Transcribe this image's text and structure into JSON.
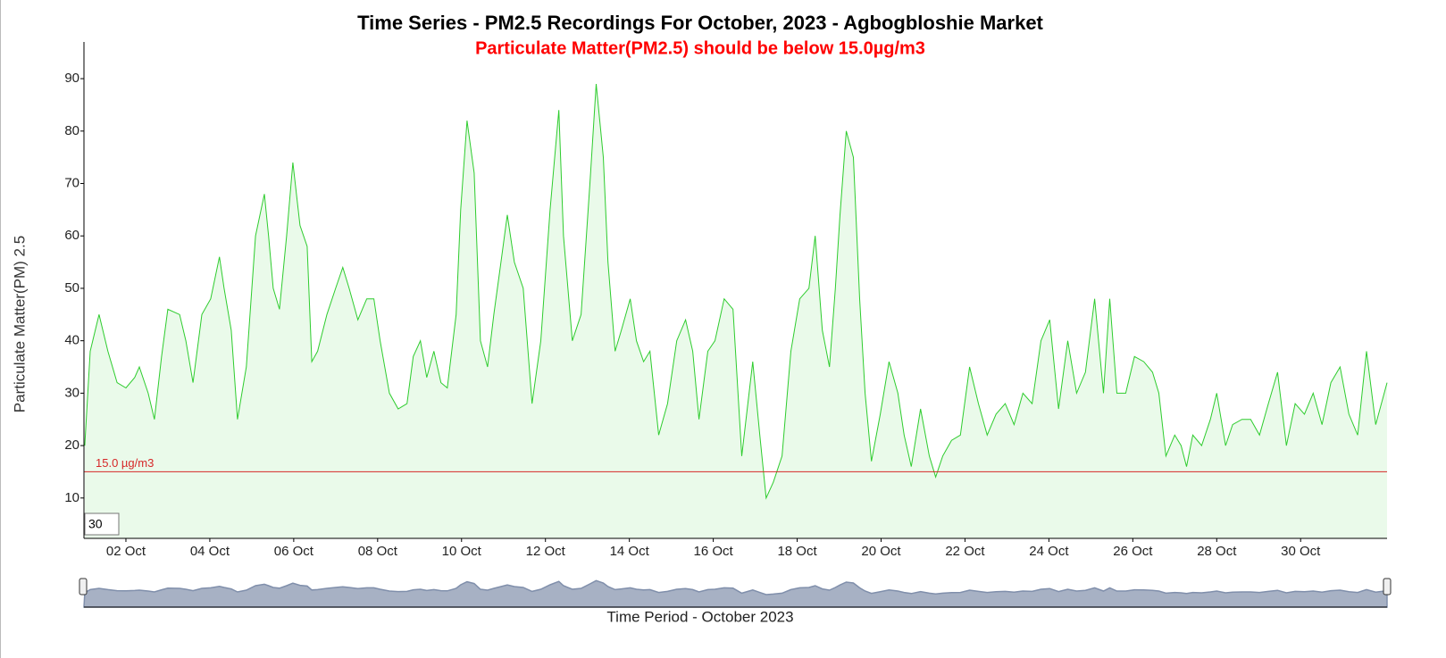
{
  "chart_data": {
    "type": "line",
    "title": "Time Series - PM2.5 Recordings For October, 2023 - Agbogbloshie Market",
    "subtitle": "Particulate Matter(PM2.5) should be below 15.0µg/m3",
    "ylabel": "Particulate Matter(PM) 2.5",
    "xlabel": "Time Period - October 2023",
    "roll_period": "30",
    "threshold": {
      "value": 15,
      "label": "15.0 µg/m3",
      "color": "#d62728"
    },
    "xlim": [
      1,
      32.06
    ],
    "ylim": [
      2.3,
      97
    ],
    "xticks": [
      {
        "value": 2,
        "label": "02 Oct"
      },
      {
        "value": 4,
        "label": "04 Oct"
      },
      {
        "value": 6,
        "label": "06 Oct"
      },
      {
        "value": 8,
        "label": "08 Oct"
      },
      {
        "value": 10,
        "label": "10 Oct"
      },
      {
        "value": 12,
        "label": "12 Oct"
      },
      {
        "value": 14,
        "label": "14 Oct"
      },
      {
        "value": 16,
        "label": "16 Oct"
      },
      {
        "value": 18,
        "label": "18 Oct"
      },
      {
        "value": 20,
        "label": "20 Oct"
      },
      {
        "value": 22,
        "label": "22 Oct"
      },
      {
        "value": 24,
        "label": "24 Oct"
      },
      {
        "value": 26,
        "label": "26 Oct"
      },
      {
        "value": 28,
        "label": "28 Oct"
      },
      {
        "value": 30,
        "label": "30 Oct"
      }
    ],
    "yticks": [
      10,
      20,
      30,
      40,
      50,
      60,
      70,
      80,
      90
    ],
    "series": [
      {
        "name": "PM2.5",
        "color": "#2ecc2e",
        "x": [
          1.02,
          1.15,
          1.36,
          1.57,
          1.79,
          2.0,
          2.21,
          2.32,
          2.53,
          2.68,
          2.85,
          3.0,
          3.28,
          3.43,
          3.6,
          3.81,
          4.02,
          4.23,
          4.34,
          4.51,
          4.66,
          4.87,
          5.09,
          5.3,
          5.4,
          5.51,
          5.66,
          5.83,
          5.98,
          6.15,
          6.32,
          6.43,
          6.57,
          6.79,
          7.0,
          7.17,
          7.32,
          7.53,
          7.74,
          7.91,
          8.06,
          8.28,
          8.49,
          8.7,
          8.85,
          9.02,
          9.17,
          9.34,
          9.51,
          9.66,
          9.87,
          9.98,
          10.13,
          10.3,
          10.45,
          10.62,
          10.77,
          10.94,
          11.09,
          11.26,
          11.47,
          11.68,
          11.89,
          12.11,
          12.32,
          12.43,
          12.64,
          12.85,
          13.06,
          13.21,
          13.38,
          13.49,
          13.66,
          13.81,
          14.02,
          14.17,
          14.34,
          14.49,
          14.7,
          14.91,
          15.13,
          15.34,
          15.51,
          15.66,
          15.87,
          16.04,
          16.26,
          16.47,
          16.68,
          16.94,
          17.11,
          17.26,
          17.43,
          17.64,
          17.85,
          18.06,
          18.28,
          18.43,
          18.6,
          18.77,
          18.91,
          19.02,
          19.17,
          19.34,
          19.49,
          19.62,
          19.77,
          19.98,
          20.19,
          20.4,
          20.55,
          20.72,
          20.94,
          21.15,
          21.3,
          21.47,
          21.68,
          21.89,
          22.11,
          22.32,
          22.53,
          22.74,
          22.96,
          23.17,
          23.38,
          23.6,
          23.81,
          24.02,
          24.23,
          24.45,
          24.66,
          24.87,
          25.09,
          25.3,
          25.45,
          25.62,
          25.83,
          26.04,
          26.26,
          26.47,
          26.62,
          26.79,
          27.0,
          27.15,
          27.28,
          27.43,
          27.64,
          27.85,
          28.0,
          28.21,
          28.38,
          28.6,
          28.81,
          29.02,
          29.23,
          29.45,
          29.66,
          29.87,
          30.09,
          30.3,
          30.51,
          30.72,
          30.94,
          31.15,
          31.36,
          31.57,
          31.79,
          32.06
        ],
        "values": [
          20,
          38,
          45,
          38,
          32,
          31,
          33,
          35,
          30,
          25,
          37,
          46,
          45,
          40,
          32,
          45,
          48,
          56,
          50,
          42,
          25,
          35,
          60,
          68,
          60,
          50,
          46,
          60,
          74,
          62,
          58,
          36,
          38,
          45,
          50,
          54,
          50,
          44,
          48,
          48,
          40,
          30,
          27,
          28,
          37,
          40,
          33,
          38,
          32,
          31,
          45,
          65,
          82,
          72,
          40,
          35,
          45,
          55,
          64,
          55,
          50,
          28,
          40,
          65,
          84,
          60,
          40,
          45,
          70,
          89,
          75,
          55,
          38,
          42,
          48,
          40,
          36,
          38,
          22,
          28,
          40,
          44,
          38,
          25,
          38,
          40,
          48,
          46,
          18,
          36,
          22,
          10,
          13,
          18,
          38,
          48,
          50,
          60,
          42,
          35,
          50,
          64,
          80,
          75,
          48,
          30,
          17,
          26,
          36,
          30,
          22,
          16,
          27,
          18,
          14,
          18,
          21,
          22,
          35,
          28,
          22,
          26,
          28,
          24,
          30,
          28,
          40,
          44,
          27,
          40,
          30,
          34,
          48,
          30,
          48,
          30,
          30,
          37,
          36,
          34,
          30,
          18,
          22,
          20,
          16,
          22,
          20,
          25,
          30,
          20,
          24,
          25,
          25,
          22,
          28,
          34,
          20,
          28,
          26,
          30,
          24,
          32,
          35,
          26,
          22,
          38,
          24,
          32
        ]
      }
    ]
  }
}
